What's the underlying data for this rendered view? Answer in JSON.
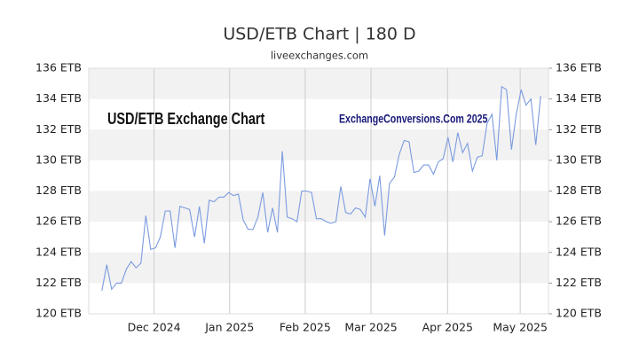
{
  "chart_data": {
    "type": "line",
    "title": "USD/ETB Chart | 180 D",
    "subtitle": "liveexchanges.com",
    "annotations": [
      "USD/ETB Exchange Chart",
      "ExchangeConversions.Com 2025"
    ],
    "series": [
      {
        "name": "USD/ETB",
        "color": "#7b9be0",
        "values": [
          121.5,
          123.2,
          121.6,
          122.0,
          122.0,
          122.9,
          123.4,
          123.0,
          123.3,
          126.4,
          124.2,
          124.3,
          125.0,
          126.7,
          126.7,
          124.3,
          127.0,
          126.9,
          126.8,
          125.0,
          127.0,
          124.6,
          127.4,
          127.3,
          127.6,
          127.6,
          127.9,
          127.7,
          127.8,
          126.1,
          125.5,
          125.5,
          126.3,
          127.9,
          125.3,
          126.9,
          125.3,
          130.6,
          126.3,
          126.2,
          126.0,
          128.0,
          128.0,
          127.9,
          126.2,
          126.2,
          126.0,
          125.9,
          126.0,
          128.3,
          126.6,
          126.5,
          126.9,
          126.8,
          126.3,
          128.8,
          127.0,
          129.0,
          125.1,
          128.5,
          128.9,
          130.4,
          131.3,
          131.2,
          129.2,
          129.3,
          129.7,
          129.7,
          129.1,
          129.9,
          130.1,
          131.5,
          129.9,
          131.8,
          130.5,
          131.1,
          129.3,
          130.2,
          130.3,
          132.4,
          133.0,
          130.0,
          134.8,
          134.6,
          130.7,
          133.0,
          134.6,
          133.6,
          134.0,
          131.0,
          134.2
        ]
      }
    ],
    "xlim": [
      -2.7,
      91.6
    ],
    "xticks": [
      {
        "value": 10.7,
        "label": "Dec 2024"
      },
      {
        "value": 26.2,
        "label": "Jan 2025"
      },
      {
        "value": 41.7,
        "label": "Feb 2025"
      },
      {
        "value": 55.2,
        "label": "Mar 2025"
      },
      {
        "value": 70.9,
        "label": "Apr 2025"
      },
      {
        "value": 85.8,
        "label": "May 2025"
      }
    ],
    "ylim": [
      120,
      136
    ],
    "yticks": [
      {
        "value": 120,
        "label": "120 ETB"
      },
      {
        "value": 122,
        "label": "122 ETB"
      },
      {
        "value": 124,
        "label": "124 ETB"
      },
      {
        "value": 126,
        "label": "126 ETB"
      },
      {
        "value": 128,
        "label": "128 ETB"
      },
      {
        "value": 130,
        "label": "130 ETB"
      },
      {
        "value": 132,
        "label": "132 ETB"
      },
      {
        "value": 134,
        "label": "134 ETB"
      },
      {
        "value": 136,
        "label": "136 ETB"
      }
    ],
    "grid": true
  }
}
